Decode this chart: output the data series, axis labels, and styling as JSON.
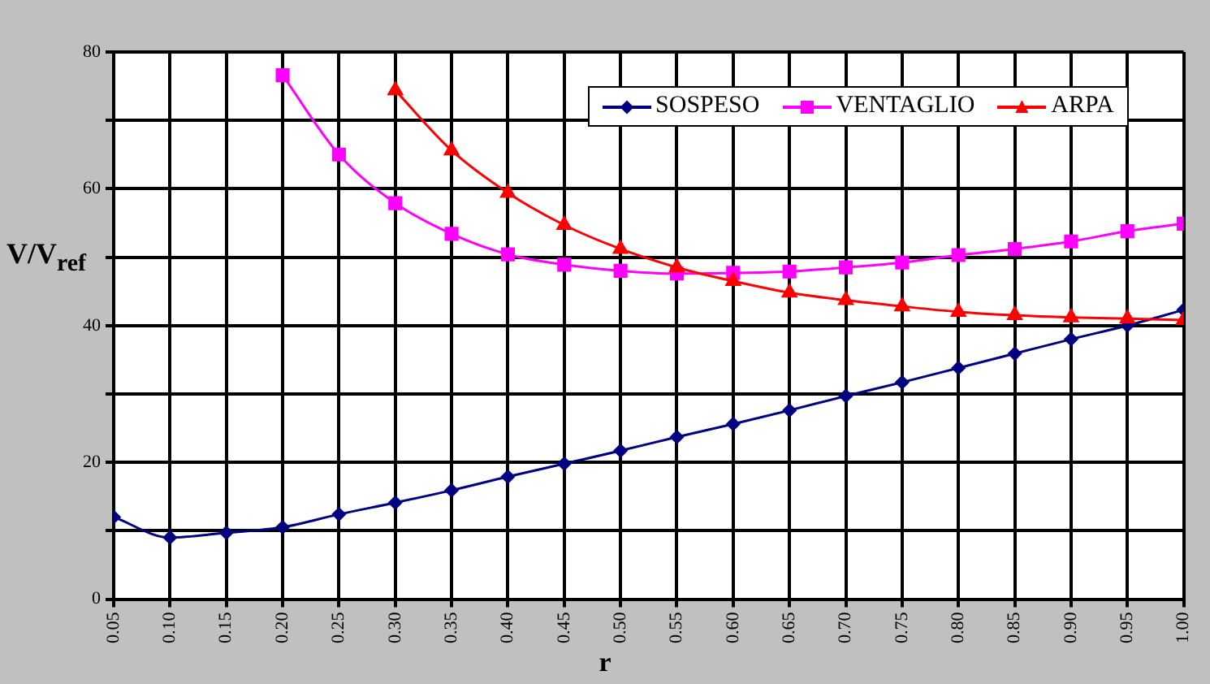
{
  "chart_data": {
    "type": "line",
    "xlabel": "r",
    "ylabel": "V/V$_{ref}$",
    "x": [
      0.05,
      0.1,
      0.15,
      0.2,
      0.25,
      0.3,
      0.35,
      0.4,
      0.45,
      0.5,
      0.55,
      0.6,
      0.65,
      0.7,
      0.75,
      0.8,
      0.85,
      0.9,
      0.95,
      1.0
    ],
    "xlim": [
      0.05,
      1.0
    ],
    "xticks": [
      {
        "value": 0.05,
        "label": "0.05"
      },
      {
        "value": 0.1,
        "label": "0.10"
      },
      {
        "value": 0.15,
        "label": "0.15"
      },
      {
        "value": 0.2,
        "label": "0.20"
      },
      {
        "value": 0.25,
        "label": "0.25"
      },
      {
        "value": 0.3,
        "label": "0.30"
      },
      {
        "value": 0.35,
        "label": "0.35"
      },
      {
        "value": 0.4,
        "label": "0.40"
      },
      {
        "value": 0.45,
        "label": "0.45"
      },
      {
        "value": 0.5,
        "label": "0.50"
      },
      {
        "value": 0.55,
        "label": "0.55"
      },
      {
        "value": 0.6,
        "label": "0.60"
      },
      {
        "value": 0.65,
        "label": "0.65"
      },
      {
        "value": 0.7,
        "label": "0.70"
      },
      {
        "value": 0.75,
        "label": "0.75"
      },
      {
        "value": 0.8,
        "label": "0.80"
      },
      {
        "value": 0.85,
        "label": "0.85"
      },
      {
        "value": 0.9,
        "label": "0.90"
      },
      {
        "value": 0.95,
        "label": "0.95"
      },
      {
        "value": 1.0,
        "label": "1.00"
      }
    ],
    "ylim": [
      0,
      80
    ],
    "yticks": [
      0,
      {
        "value": 10,
        "label": null
      },
      20,
      {
        "value": 30,
        "label": null
      },
      40,
      {
        "value": 50,
        "label": null
      },
      60,
      {
        "value": 70,
        "label": null
      },
      80
    ],
    "grid": true,
    "legend": "top right",
    "line_style": "solid",
    "series": [
      {
        "name": "SOSPESO",
        "color": "#000080",
        "marker": "diamond",
        "values": [
          12.0,
          9.0,
          9.7,
          10.5,
          12.4,
          14.1,
          15.9,
          17.9,
          19.8,
          21.7,
          23.7,
          25.6,
          27.6,
          29.7,
          31.7,
          33.8,
          35.9,
          38.0,
          40.0,
          42.3
        ]
      },
      {
        "name": "VENTAGLIO",
        "color": "#ff00ff",
        "marker": "square",
        "values": [
          null,
          null,
          null,
          76.6,
          65.0,
          57.9,
          53.4,
          50.4,
          48.9,
          48.0,
          47.6,
          47.7,
          47.9,
          48.5,
          49.2,
          50.3,
          51.2,
          52.3,
          53.8,
          54.9
        ]
      },
      {
        "name": "ARPA",
        "color": "#ff0000",
        "marker": "triangle",
        "values": [
          null,
          null,
          null,
          null,
          null,
          74.4,
          65.6,
          59.4,
          54.7,
          51.2,
          48.5,
          46.5,
          44.8,
          43.7,
          42.8,
          42.0,
          41.5,
          41.2,
          41.0,
          40.8
        ]
      }
    ]
  }
}
